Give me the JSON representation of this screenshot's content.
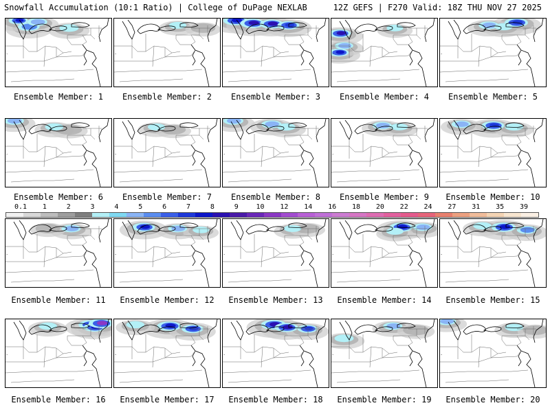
{
  "header": {
    "left": "Snowfall Accumulation (10:1 Ratio) | College of DuPage NEXLAB",
    "right": "12Z GEFS | F270 Valid: 18Z THU NOV 27 2025"
  },
  "colorbar": {
    "ticks": [
      "0.1",
      "1",
      "2",
      "3",
      "4",
      "5",
      "6",
      "7",
      "8",
      "9",
      "10",
      "12",
      "14",
      "16",
      "18",
      "20",
      "22",
      "24",
      "27",
      "31",
      "35",
      "39"
    ],
    "colors": [
      "#f2f2f2",
      "#d9d9d9",
      "#bdbdbd",
      "#9e9e9e",
      "#7f7f7f",
      "#b3f0f7",
      "#7fd9f2",
      "#8ab4f5",
      "#5a8df0",
      "#3a5fe8",
      "#1d38d8",
      "#0c16c8",
      "#2a10b0",
      "#4a1aa8",
      "#6a28b8",
      "#8b38c4",
      "#a24cd0",
      "#b860d6",
      "#c070d8",
      "#cc7cd2",
      "#d676c4",
      "#de6cb2",
      "#e2609e",
      "#e45a8c",
      "#e6647a",
      "#e8806e",
      "#eca080",
      "#f0bc9a",
      "#f4d4b4",
      "#f8e6d0",
      "#fbf0e4"
    ]
  },
  "member_label_prefix": "Ensemble Member: ",
  "members": [
    {
      "label": "Ensemble Member: 1",
      "snow": [
        [
          22,
          12,
          0.7,
          4
        ],
        [
          12,
          3,
          0.55,
          6
        ],
        [
          30,
          5,
          0.6,
          3
        ],
        [
          60,
          14,
          0.55,
          2
        ]
      ]
    },
    {
      "label": "Ensemble Member: 2",
      "snow": [
        [
          60,
          10,
          0.45,
          2
        ],
        [
          84,
          12,
          0.4,
          1
        ]
      ]
    },
    {
      "label": "Ensemble Member: 3",
      "snow": [
        [
          12,
          3,
          0.85,
          6
        ],
        [
          28,
          7,
          0.85,
          7
        ],
        [
          46,
          8,
          0.8,
          7
        ],
        [
          62,
          10,
          0.7,
          5
        ]
      ]
    },
    {
      "label": "Ensemble Member: 4",
      "snow": [
        [
          8,
          22,
          0.7,
          7
        ],
        [
          7,
          50,
          0.6,
          6
        ],
        [
          12,
          40,
          0.5,
          3
        ],
        [
          60,
          14,
          0.4,
          2
        ]
      ]
    },
    {
      "label": "Ensemble Member: 5",
      "snow": [
        [
          72,
          6,
          0.8,
          5
        ],
        [
          46,
          10,
          0.6,
          3
        ],
        [
          60,
          12,
          0.5,
          2
        ]
      ]
    },
    {
      "label": "Ensemble Member: 6",
      "snow": [
        [
          8,
          3,
          0.6,
          3
        ],
        [
          46,
          12,
          0.5,
          2
        ],
        [
          60,
          14,
          0.45,
          1
        ]
      ]
    },
    {
      "label": "Ensemble Member: 7",
      "snow": [
        [
          40,
          12,
          0.45,
          2
        ],
        [
          56,
          14,
          0.4,
          1
        ]
      ]
    },
    {
      "label": "Ensemble Member: 8",
      "snow": [
        [
          10,
          3,
          0.6,
          3
        ],
        [
          46,
          8,
          0.6,
          3
        ],
        [
          60,
          12,
          0.5,
          2
        ]
      ]
    },
    {
      "label": "Ensemble Member: 9",
      "snow": [
        [
          48,
          10,
          0.55,
          3
        ],
        [
          64,
          12,
          0.45,
          2
        ]
      ]
    },
    {
      "label": "Ensemble Member: 10",
      "snow": [
        [
          50,
          10,
          0.75,
          5
        ],
        [
          20,
          8,
          0.55,
          3
        ],
        [
          70,
          12,
          0.5,
          2
        ]
      ]
    },
    {
      "label": "Ensemble Member: 11",
      "snow": [
        [
          62,
          14,
          0.55,
          3
        ],
        [
          40,
          12,
          0.4,
          1
        ]
      ]
    },
    {
      "label": "Ensemble Member: 12",
      "snow": [
        [
          28,
          12,
          0.75,
          6
        ],
        [
          60,
          14,
          0.55,
          3
        ],
        [
          82,
          16,
          0.4,
          2
        ]
      ]
    },
    {
      "label": "Ensemble Member: 13",
      "snow": [
        [
          66,
          14,
          0.45,
          2
        ],
        [
          80,
          12,
          0.4,
          1
        ]
      ]
    },
    {
      "label": "Ensemble Member: 14",
      "snow": [
        [
          66,
          12,
          0.8,
          6
        ],
        [
          86,
          12,
          0.55,
          3
        ],
        [
          60,
          18,
          0.45,
          2
        ]
      ]
    },
    {
      "label": "Ensemble Member: 15",
      "snow": [
        [
          60,
          12,
          0.85,
          6
        ],
        [
          82,
          16,
          0.6,
          4
        ],
        [
          40,
          10,
          0.5,
          2
        ]
      ]
    },
    {
      "label": "Ensemble Member: 16",
      "snow": [
        [
          80,
          8,
          0.8,
          5
        ],
        [
          84,
          12,
          0.7,
          6
        ],
        [
          90,
          6,
          0.85,
          8
        ],
        [
          40,
          10,
          0.5,
          2
        ]
      ]
    },
    {
      "label": "Ensemble Member: 17",
      "snow": [
        [
          52,
          10,
          0.85,
          6
        ],
        [
          74,
          14,
          0.7,
          5
        ],
        [
          20,
          8,
          0.5,
          2
        ]
      ]
    },
    {
      "label": "Ensemble Member: 18",
      "snow": [
        [
          48,
          8,
          0.9,
          7
        ],
        [
          60,
          12,
          0.8,
          7
        ],
        [
          80,
          14,
          0.6,
          5
        ]
      ]
    },
    {
      "label": "Ensemble Member: 19",
      "snow": [
        [
          58,
          10,
          0.55,
          3
        ],
        [
          12,
          28,
          0.55,
          2
        ],
        [
          80,
          14,
          0.45,
          1
        ]
      ]
    },
    {
      "label": "Ensemble Member: 20",
      "snow": [
        [
          6,
          3,
          0.55,
          3
        ],
        [
          70,
          12,
          0.5,
          2
        ],
        [
          90,
          14,
          0.4,
          1
        ]
      ]
    }
  ]
}
